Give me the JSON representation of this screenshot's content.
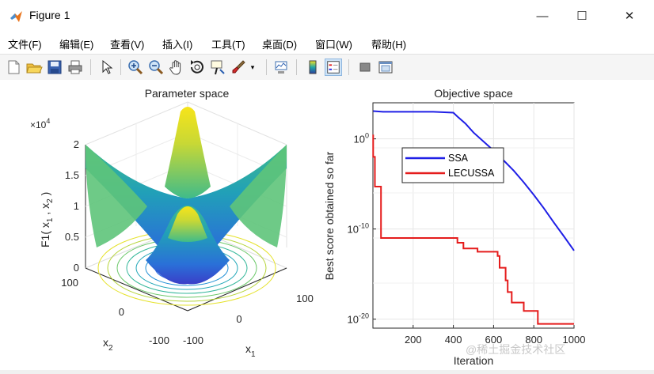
{
  "window": {
    "title": "Figure 1",
    "minimize": "—",
    "maximize": "☐",
    "close": "✕"
  },
  "menu": [
    {
      "label": "文件(F)"
    },
    {
      "label": "编辑(E)"
    },
    {
      "label": "查看(V)"
    },
    {
      "label": "插入(I)"
    },
    {
      "label": "工具(T)"
    },
    {
      "label": "桌面(D)"
    },
    {
      "label": "窗口(W)"
    },
    {
      "label": "帮助(H)"
    }
  ],
  "toolbar": {
    "icons": [
      "new-figure-icon",
      "open-file-icon",
      "save-icon",
      "print-icon",
      "edit-plot-arrow-icon",
      "zoom-in-icon",
      "zoom-out-icon",
      "pan-hand-icon",
      "rotate-3d-icon",
      "data-cursor-icon",
      "brush-icon",
      "brush-dropdown-icon",
      "link-plot-icon",
      "insert-colorbar-icon",
      "insert-legend-icon",
      "hide-plot-tools-icon",
      "show-plot-tools-icon"
    ]
  },
  "left_plot": {
    "title": "Parameter space",
    "zlabel": "F1( x",
    "zlabel_sub1": "1",
    "zlabel_mid": " , x",
    "zlabel_sub2": "2",
    "zlabel_end": " )",
    "exponent_base": "×10",
    "exponent_power": "4",
    "zticks": [
      "2",
      "1.5",
      "1",
      "0.5",
      "0"
    ],
    "x2_label": "x",
    "x2_sub": "2",
    "x1_label": "x",
    "x1_sub": "1",
    "x2_ticks": [
      "100",
      "0",
      "-100"
    ],
    "x1_ticks": [
      "-100",
      "0",
      "100"
    ]
  },
  "chart_data": {
    "type": "line",
    "title": "Objective space",
    "xlabel": "Iteration",
    "ylabel": "Best score obtained so far",
    "yscale": "log",
    "xlim": [
      0,
      1000
    ],
    "ylim": [
      1e-21,
      10000.0
    ],
    "xticks": [
      "200",
      "400",
      "600",
      "800",
      "1000"
    ],
    "yticks": [
      {
        "base": "10",
        "exp": "0",
        "value": 1
      },
      {
        "base": "10",
        "exp": "-10",
        "value": 1e-10
      },
      {
        "base": "10",
        "exp": "-20",
        "value": 1e-20
      }
    ],
    "legend_position": "top-left",
    "series": [
      {
        "name": "SSA",
        "color": "#1f1fe6",
        "points": [
          [
            1,
            1200.0
          ],
          [
            50,
            1000.0
          ],
          [
            150,
            1000.0
          ],
          [
            300,
            1000.0
          ],
          [
            400,
            800.0
          ],
          [
            420,
            300.0
          ],
          [
            460,
            50.0
          ],
          [
            500,
            5.0
          ],
          [
            550,
            0.5
          ],
          [
            600,
            0.05
          ],
          [
            650,
            0.004
          ],
          [
            700,
            0.0003
          ],
          [
            750,
            1.5e-05
          ],
          [
            800,
            6e-07
          ],
          [
            850,
            2e-08
          ],
          [
            900,
            5e-10
          ],
          [
            950,
            1.5e-11
          ],
          [
            1000,
            4e-13
          ]
        ]
      },
      {
        "name": "LECUSSA",
        "color": "#e51c1c",
        "points": [
          [
            1,
            3.0
          ],
          [
            1,
            0.01
          ],
          [
            10,
            0.01
          ],
          [
            10,
            5e-06
          ],
          [
            40,
            5e-06
          ],
          [
            40,
            1e-11
          ],
          [
            420,
            1e-11
          ],
          [
            420,
            3e-12
          ],
          [
            450,
            3e-12
          ],
          [
            450,
            7e-13
          ],
          [
            520,
            7e-13
          ],
          [
            520,
            3e-13
          ],
          [
            620,
            3e-13
          ],
          [
            620,
            1e-13
          ],
          [
            630,
            1e-13
          ],
          [
            630,
            5e-15
          ],
          [
            660,
            5e-15
          ],
          [
            660,
            2e-16
          ],
          [
            670,
            2e-16
          ],
          [
            670,
            1e-17
          ],
          [
            690,
            1e-17
          ],
          [
            690,
            7e-19
          ],
          [
            750,
            7e-19
          ],
          [
            750,
            8e-20
          ],
          [
            820,
            8e-20
          ],
          [
            820,
            3e-21
          ],
          [
            1000,
            3e-21
          ]
        ]
      }
    ]
  },
  "watermark": "@稀土掘金技术社区",
  "colors": {
    "ssa": "#1f1fe6",
    "lecussa": "#e51c1c",
    "surface_low": "#2b3fa0",
    "surface_mid": "#21a8a8",
    "surface_high": "#f5e11f"
  }
}
